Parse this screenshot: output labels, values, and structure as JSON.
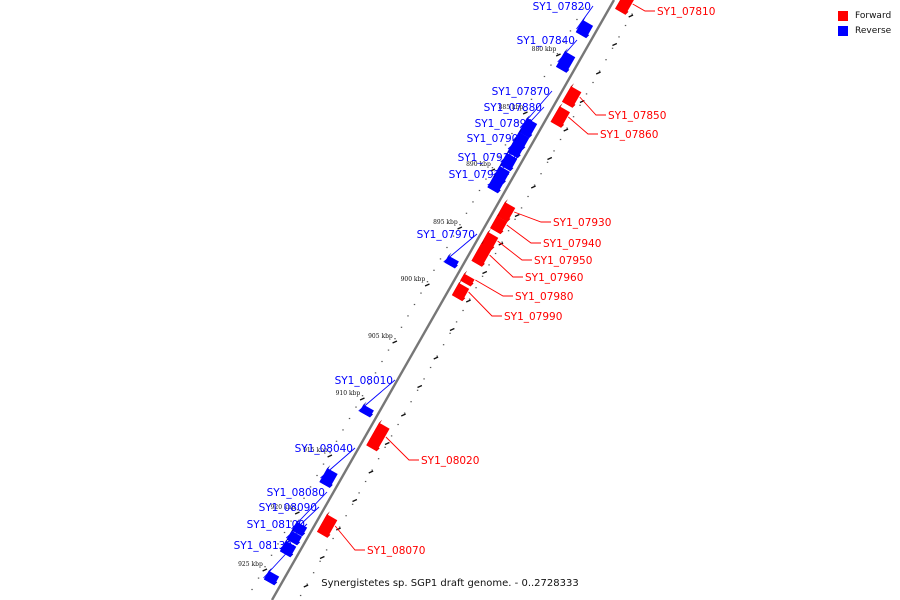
{
  "legend": [
    {
      "label": "Forward",
      "color": "#ff0000"
    },
    {
      "label": "Reverse",
      "color": "#0000ff"
    }
  ],
  "caption": "Synergistetes sp. SGP1 draft genome. - 0..2728333",
  "colors": {
    "forward": "#ff0000",
    "reverse": "#0000ff",
    "backbone": "#777777"
  },
  "ticks": [
    "880 kbp",
    "885 kbp",
    "890 kbp",
    "895 kbp",
    "900 kbp",
    "905 kbp",
    "910 kbp",
    "915 kbp",
    "920 kbp",
    "925 kbp"
  ],
  "genes": [
    {
      "name": "SY1_07810",
      "strand": "forward"
    },
    {
      "name": "SY1_07820",
      "strand": "reverse"
    },
    {
      "name": "SY1_07840",
      "strand": "reverse"
    },
    {
      "name": "SY1_07850",
      "strand": "forward"
    },
    {
      "name": "SY1_07860",
      "strand": "forward"
    },
    {
      "name": "SY1_07870",
      "strand": "reverse"
    },
    {
      "name": "SY1_07880",
      "strand": "reverse"
    },
    {
      "name": "SY1_07890",
      "strand": "reverse"
    },
    {
      "name": "SY1_07900",
      "strand": "reverse"
    },
    {
      "name": "SY1_07910",
      "strand": "reverse"
    },
    {
      "name": "SY1_07920",
      "strand": "reverse"
    },
    {
      "name": "SY1_07930",
      "strand": "forward"
    },
    {
      "name": "SY1_07940",
      "strand": "forward"
    },
    {
      "name": "SY1_07950",
      "strand": "forward"
    },
    {
      "name": "SY1_07960",
      "strand": "forward"
    },
    {
      "name": "SY1_07970",
      "strand": "reverse"
    },
    {
      "name": "SY1_07980",
      "strand": "forward"
    },
    {
      "name": "SY1_07990",
      "strand": "forward"
    },
    {
      "name": "SY1_08010",
      "strand": "reverse"
    },
    {
      "name": "SY1_08020",
      "strand": "forward"
    },
    {
      "name": "SY1_08040",
      "strand": "reverse"
    },
    {
      "name": "SY1_08070",
      "strand": "forward"
    },
    {
      "name": "SY1_08080",
      "strand": "reverse"
    },
    {
      "name": "SY1_08090",
      "strand": "reverse"
    },
    {
      "name": "SY1_08100",
      "strand": "reverse"
    },
    {
      "name": "SY1_08130",
      "strand": "reverse"
    }
  ]
}
